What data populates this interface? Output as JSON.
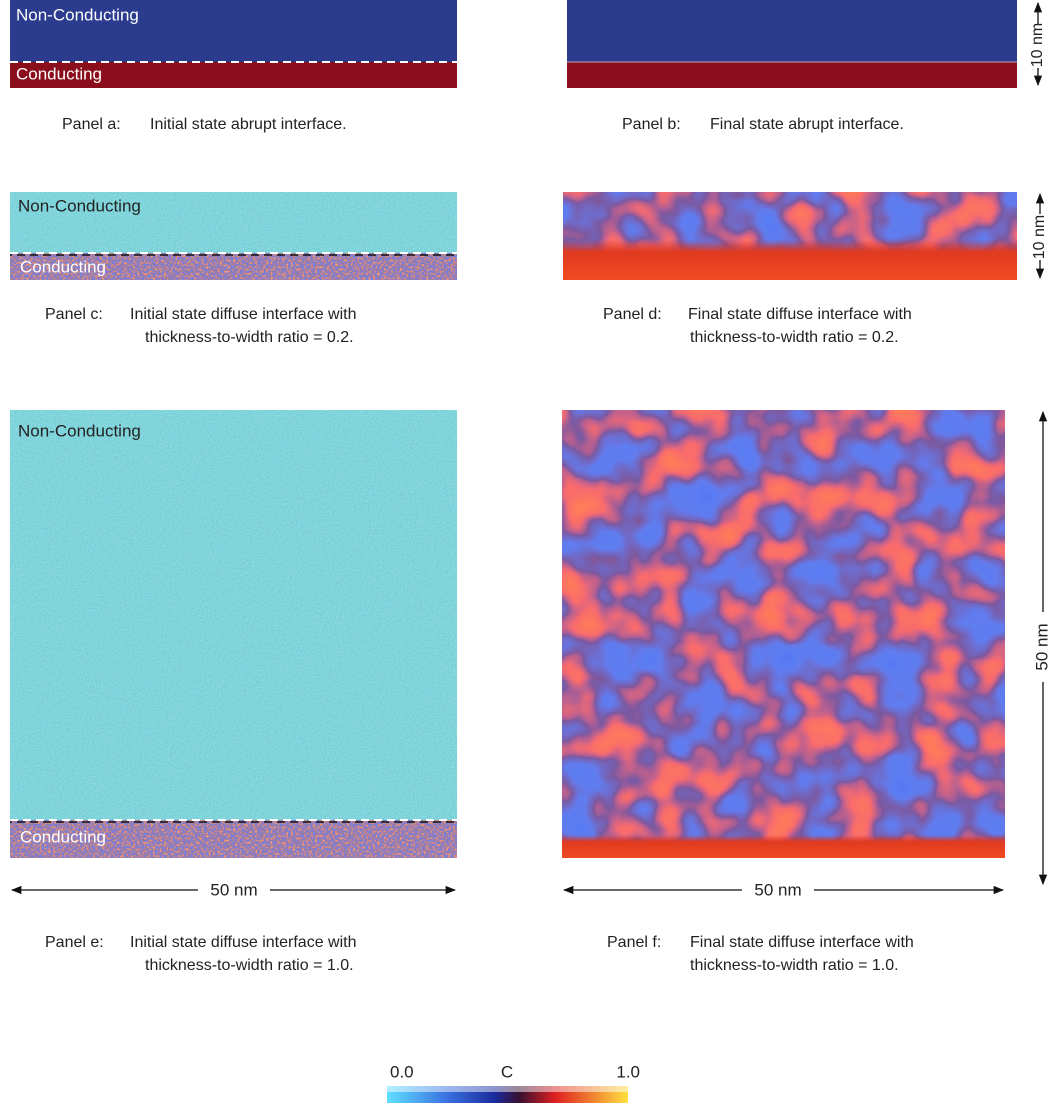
{
  "panels": [
    {
      "label": "Panel a:",
      "caption": [
        "Initial state abrupt interface."
      ],
      "top_region": "Non-Conducting",
      "bottom_region": "Conducting"
    },
    {
      "label": "Panel b:",
      "caption": [
        "Final state abrupt interface."
      ],
      "scale": "10 nm"
    },
    {
      "label": "Panel c:",
      "caption": [
        "Initial state diffuse interface with",
        "thickness-to-width ratio = 0.2."
      ],
      "top_region": "Non-Conducting",
      "bottom_region": "Conducting"
    },
    {
      "label": "Panel d:",
      "caption": [
        "Final state diffuse interface with",
        "thickness-to-width ratio = 0.2."
      ],
      "scale": "10 nm"
    },
    {
      "label": "Panel e:",
      "caption": [
        "Initial state diffuse interface with",
        "thickness-to-width ratio = 1.0."
      ],
      "top_region": "Non-Conducting",
      "bottom_region": "Conducting",
      "scale": "50 nm"
    },
    {
      "label": "Panel f:",
      "caption": [
        "Final state diffuse interface with",
        "thickness-to-width ratio = 1.0."
      ],
      "scale": "50 nm",
      "side_scale": "50 nm"
    }
  ],
  "colorbar": {
    "min_label": "0.0",
    "title": "C",
    "max_label": "1.0"
  }
}
